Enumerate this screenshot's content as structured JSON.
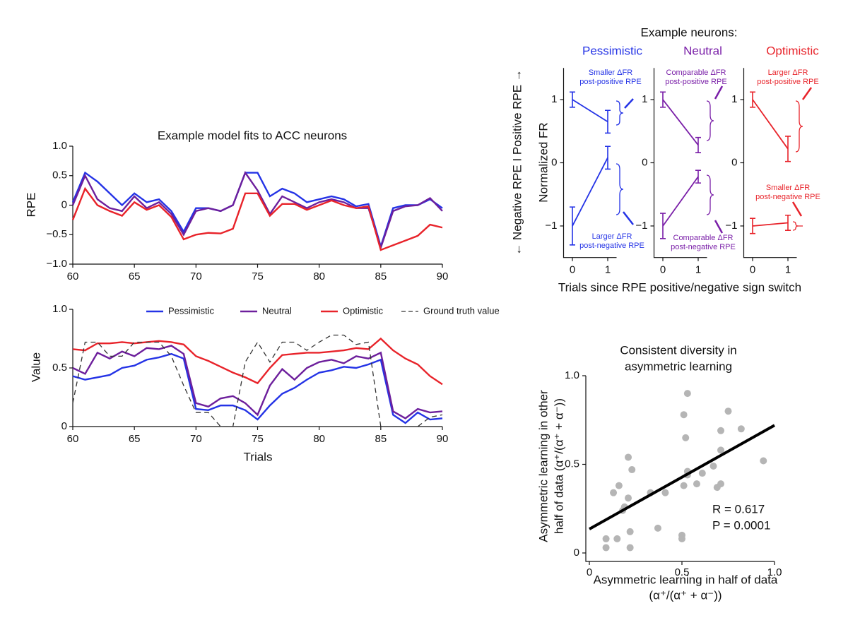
{
  "chart_data": [
    {
      "type": "line",
      "title": "Example model fits to ACC neurons",
      "ylabel": "RPE",
      "xlim": [
        60,
        90
      ],
      "xticks": [
        60,
        65,
        70,
        75,
        80,
        85,
        90
      ],
      "ylim": [
        -1,
        1
      ],
      "yticks": [
        {
          "value": -1,
          "label": "−1.0"
        },
        {
          "value": -0.5,
          "label": "−0.5"
        },
        0,
        0.5,
        {
          "value": 1,
          "label": "1.0"
        }
      ],
      "x": [
        60,
        61,
        62,
        63,
        64,
        65,
        66,
        67,
        68,
        69,
        70,
        71,
        72,
        73,
        74,
        75,
        76,
        77,
        78,
        79,
        80,
        81,
        82,
        83,
        84,
        85,
        86,
        87,
        88,
        89,
        90
      ],
      "series": [
        {
          "name": "Pessimistic",
          "color": "#2433e6",
          "values": [
            0.05,
            0.55,
            0.4,
            0.2,
            0.0,
            0.2,
            0.05,
            0.1,
            -0.1,
            -0.45,
            -0.05,
            -0.05,
            -0.1,
            0.0,
            0.55,
            0.55,
            0.15,
            0.28,
            0.2,
            0.05,
            0.1,
            0.15,
            0.1,
            -0.02,
            0.02,
            -0.7,
            -0.05,
            0.0,
            0.0,
            0.1,
            -0.05
          ]
        },
        {
          "name": "Neutral",
          "color": "#6d1f9c",
          "values": [
            0.0,
            0.5,
            0.1,
            -0.05,
            -0.1,
            0.15,
            -0.05,
            0.05,
            -0.15,
            -0.5,
            -0.1,
            -0.05,
            -0.1,
            0.0,
            0.55,
            0.25,
            -0.15,
            0.15,
            0.05,
            -0.05,
            0.05,
            0.1,
            0.05,
            -0.05,
            -0.05,
            -0.72,
            -0.1,
            -0.02,
            0.0,
            0.12,
            -0.1
          ]
        },
        {
          "name": "Optimistic",
          "color": "#e8232a",
          "values": [
            -0.25,
            0.28,
            0.0,
            -0.1,
            -0.18,
            0.05,
            -0.08,
            0.0,
            -0.2,
            -0.58,
            -0.5,
            -0.47,
            -0.48,
            -0.4,
            0.2,
            0.2,
            -0.18,
            0.02,
            0.02,
            -0.08,
            0.0,
            0.08,
            0.0,
            -0.05,
            -0.02,
            -0.76,
            -0.68,
            -0.6,
            -0.52,
            -0.33,
            -0.38
          ]
        }
      ]
    },
    {
      "type": "line",
      "xlabel": "Trials",
      "ylabel": "Value",
      "legend": "top",
      "xlim": [
        60,
        90
      ],
      "xticks": [
        60,
        65,
        70,
        75,
        80,
        85,
        90
      ],
      "ylim": [
        0,
        1
      ],
      "yticks": [
        0,
        0.5,
        {
          "value": 1,
          "label": "1.0"
        }
      ],
      "x": [
        60,
        61,
        62,
        63,
        64,
        65,
        66,
        67,
        68,
        69,
        70,
        71,
        72,
        73,
        74,
        75,
        76,
        77,
        78,
        79,
        80,
        81,
        82,
        83,
        84,
        85,
        86,
        87,
        88,
        89,
        90
      ],
      "series": [
        {
          "name": "Pessimistic",
          "color": "#2433e6",
          "values": [
            0.43,
            0.4,
            0.42,
            0.44,
            0.5,
            0.52,
            0.57,
            0.59,
            0.62,
            0.58,
            0.15,
            0.14,
            0.18,
            0.18,
            0.14,
            0.06,
            0.18,
            0.28,
            0.33,
            0.4,
            0.46,
            0.48,
            0.51,
            0.5,
            0.53,
            0.57,
            0.1,
            0.03,
            0.12,
            0.06,
            0.07
          ]
        },
        {
          "name": "Neutral",
          "color": "#6d1f9c",
          "values": [
            0.5,
            0.45,
            0.63,
            0.58,
            0.64,
            0.6,
            0.67,
            0.66,
            0.69,
            0.62,
            0.2,
            0.17,
            0.24,
            0.26,
            0.2,
            0.1,
            0.35,
            0.49,
            0.4,
            0.5,
            0.55,
            0.57,
            0.54,
            0.6,
            0.58,
            0.63,
            0.13,
            0.07,
            0.15,
            0.12,
            0.13
          ]
        },
        {
          "name": "Optimistic",
          "color": "#e8232a",
          "values": [
            0.66,
            0.65,
            0.71,
            0.71,
            0.72,
            0.71,
            0.72,
            0.73,
            0.72,
            0.7,
            0.6,
            0.56,
            0.51,
            0.46,
            0.42,
            0.37,
            0.5,
            0.61,
            0.62,
            0.63,
            0.63,
            0.64,
            0.65,
            0.67,
            0.66,
            0.75,
            0.65,
            0.58,
            0.53,
            0.43,
            0.36
          ]
        },
        {
          "name": "Ground truth value",
          "color": "#333333",
          "linestyle": "dashed",
          "values": [
            0.2,
            0.72,
            0.72,
            0.6,
            0.6,
            0.72,
            0.72,
            0.72,
            0.6,
            0.35,
            0.12,
            0.12,
            0.0,
            0.0,
            0.55,
            0.72,
            0.55,
            0.72,
            0.72,
            0.65,
            0.72,
            0.78,
            0.78,
            0.7,
            0.72,
            0.0,
            0.0,
            0.0,
            0.0,
            0.08,
            0.1
          ]
        }
      ]
    },
    {
      "type": "errorbar",
      "title": "Example neurons:",
      "ylabel": "Normalized FR",
      "side_label": "← Negative RPE I Positive RPE →",
      "xlabel": "Trials since RPE positive/negative sign switch",
      "x": [
        0,
        1
      ],
      "xlim": [
        -0.25,
        1.25
      ],
      "xticks": [
        0,
        1
      ],
      "ylim": [
        -1.5,
        1.5
      ],
      "yticks": [
        {
          "value": -1,
          "label": "−1"
        },
        0,
        1
      ],
      "panels": [
        {
          "title": "Pessimistic",
          "color": "#2433e6",
          "series": [
            {
              "values": [
                1.0,
                0.65
              ],
              "errors": [
                0.12,
                0.18
              ]
            },
            {
              "values": [
                -1.0,
                0.08
              ],
              "errors": [
                0.3,
                0.18
              ]
            }
          ],
          "annotations": [
            [
              "Smaller ΔFR",
              "post-positive RPE"
            ],
            [
              "Larger ΔFR",
              "post-negative RPE"
            ]
          ]
        },
        {
          "title": "Neutral",
          "color": "#7a1fa8",
          "series": [
            {
              "values": [
                1.0,
                0.28
              ],
              "errors": [
                0.12,
                0.12
              ]
            },
            {
              "values": [
                -1.0,
                -0.22
              ],
              "errors": [
                0.2,
                0.1
              ]
            }
          ],
          "annotations": [
            [
              "Comparable ΔFR",
              "post-positive RPE"
            ],
            [
              "Comparable ΔFR",
              "post-negative RPE"
            ]
          ]
        },
        {
          "title": "Optimistic",
          "color": "#e8232a",
          "series": [
            {
              "values": [
                1.0,
                0.22
              ],
              "errors": [
                0.12,
                0.2
              ]
            },
            {
              "values": [
                -1.0,
                -0.95
              ],
              "errors": [
                0.12,
                0.12
              ]
            }
          ],
          "annotations": [
            [
              "Larger ΔFR",
              "post-positive RPE"
            ],
            [
              "Smaller ΔFR",
              "post-negative RPE"
            ]
          ]
        }
      ]
    },
    {
      "type": "scatter",
      "title": [
        "Consistent diversity in",
        "asymmetric learning"
      ],
      "xlabel": [
        "Asymmetric learning in half of data",
        "(α⁺/(α⁺ + α⁻))"
      ],
      "ylabel": [
        "Asymmetric learning in other",
        "half of data (α⁺/(α⁺ + α⁻))"
      ],
      "xlim": [
        0,
        1
      ],
      "xticks": [
        0,
        0.5,
        {
          "value": 1,
          "label": "1.0"
        }
      ],
      "ylim": [
        0,
        1
      ],
      "yticks": [
        0,
        0.5,
        {
          "value": 1,
          "label": "1.0"
        }
      ],
      "color": "#b5b5b5",
      "x": [
        0.09,
        0.09,
        0.15,
        0.13,
        0.16,
        0.18,
        0.19,
        0.21,
        0.21,
        0.23,
        0.22,
        0.22,
        0.33,
        0.37,
        0.41,
        0.5,
        0.5,
        0.51,
        0.53,
        0.52,
        0.51,
        0.53,
        0.53,
        0.58,
        0.61,
        0.67,
        0.69,
        0.71,
        0.71,
        0.71,
        0.75,
        0.82,
        0.94
      ],
      "y": [
        0.08,
        0.03,
        0.08,
        0.34,
        0.38,
        0.24,
        0.26,
        0.31,
        0.54,
        0.47,
        0.12,
        0.03,
        0.34,
        0.14,
        0.34,
        0.08,
        0.1,
        0.78,
        0.9,
        0.65,
        0.38,
        0.46,
        0.44,
        0.39,
        0.45,
        0.49,
        0.37,
        0.58,
        0.39,
        0.69,
        0.8,
        0.7,
        0.52
      ],
      "fit": {
        "x": [
          0,
          1
        ],
        "y": [
          0.135,
          0.72
        ],
        "color": "#000000"
      },
      "annotations": [
        "R = 0.617",
        "P = 0.0001"
      ]
    }
  ]
}
